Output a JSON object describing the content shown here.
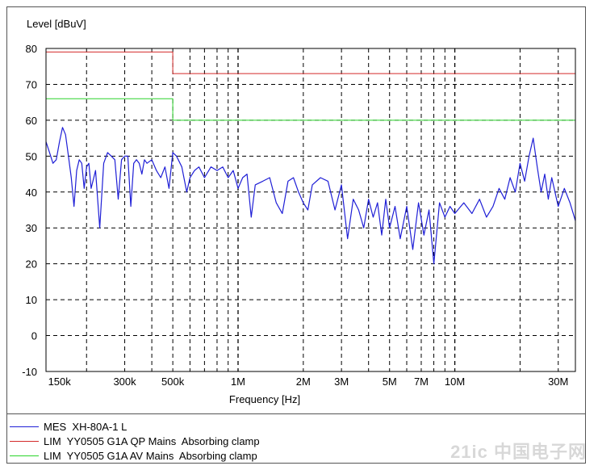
{
  "chart_data": {
    "type": "line",
    "ylabel": "Level [dBuV]",
    "xlabel": "Frequency [Hz]",
    "x_scale": "log",
    "xlim": [
      130000,
      36000000
    ],
    "ylim": [
      -10,
      80
    ],
    "yticks": [
      80,
      70,
      60,
      50,
      40,
      30,
      20,
      10,
      0,
      -10
    ],
    "xticks": [
      {
        "value": 150000,
        "label": "150k"
      },
      {
        "value": 300000,
        "label": "300k"
      },
      {
        "value": 500000,
        "label": "500k"
      },
      {
        "value": 1000000,
        "label": "1M"
      },
      {
        "value": 2000000,
        "label": "2M"
      },
      {
        "value": 3000000,
        "label": "3M"
      },
      {
        "value": 5000000,
        "label": "5M"
      },
      {
        "value": 7000000,
        "label": "7M"
      },
      {
        "value": 10000000,
        "label": "10M"
      },
      {
        "value": 30000000,
        "label": "30M"
      }
    ],
    "grid": true,
    "series": [
      {
        "name": "MES  XH-80A-1 L",
        "color": "#1f1fd6",
        "x": [
          130000,
          135000,
          140000,
          145000,
          150000,
          155000,
          160000,
          165000,
          170000,
          175000,
          180000,
          185000,
          190000,
          195000,
          200000,
          205000,
          210000,
          220000,
          230000,
          240000,
          250000,
          260000,
          270000,
          280000,
          290000,
          300000,
          310000,
          320000,
          330000,
          340000,
          350000,
          360000,
          370000,
          380000,
          400000,
          420000,
          440000,
          460000,
          480000,
          500000,
          520000,
          550000,
          580000,
          600000,
          630000,
          660000,
          700000,
          750000,
          800000,
          850000,
          900000,
          950000,
          1000000,
          1050000,
          1100000,
          1150000,
          1200000,
          1300000,
          1400000,
          1500000,
          1600000,
          1700000,
          1800000,
          1900000,
          2000000,
          2100000,
          2200000,
          2400000,
          2600000,
          2800000,
          3000000,
          3200000,
          3400000,
          3600000,
          3800000,
          4000000,
          4200000,
          4400000,
          4600000,
          4800000,
          5000000,
          5300000,
          5600000,
          6000000,
          6400000,
          6800000,
          7200000,
          7600000,
          8000000,
          8500000,
          9000000,
          9500000,
          10000000,
          11000000,
          12000000,
          13000000,
          14000000,
          15000000,
          16000000,
          17000000,
          18000000,
          19000000,
          20000000,
          21000000,
          22000000,
          23000000,
          24000000,
          25000000,
          26000000,
          27000000,
          28000000,
          30000000,
          32000000,
          34000000,
          36000000
        ],
        "y": [
          54,
          51,
          48,
          49,
          54,
          58,
          56,
          50,
          44,
          36,
          46,
          49,
          48,
          41,
          47,
          48,
          41,
          46,
          30,
          48,
          51,
          50,
          49,
          38,
          49,
          50,
          50,
          36,
          48,
          49,
          48,
          45,
          49,
          48,
          49,
          46,
          44,
          47,
          41,
          51,
          50,
          47,
          40,
          44,
          46,
          47,
          44,
          47,
          46,
          47,
          44,
          46,
          41,
          44,
          45,
          33,
          42,
          43,
          44,
          37,
          34,
          43,
          44,
          40,
          37,
          35,
          42,
          44,
          43,
          35,
          42,
          27,
          38,
          35,
          30,
          38,
          33,
          37,
          28,
          38,
          30,
          36,
          27,
          36,
          24,
          37,
          28,
          35,
          20,
          37,
          33,
          36,
          34,
          37,
          34,
          38,
          33,
          36,
          41,
          38,
          44,
          40,
          48,
          43,
          50,
          55,
          47,
          40,
          45,
          38,
          44,
          36,
          41,
          37,
          32
        ]
      },
      {
        "name": "LIM  YY0505 G1A QP Mains  Absorbing clamp",
        "color": "#d42a2a",
        "x": [
          130000,
          500000,
          500000,
          36000000
        ],
        "y": [
          79,
          79,
          73,
          73
        ]
      },
      {
        "name": "LIM  YY0505 G1A AV Mains  Absorbing clamp",
        "color": "#2ad42a",
        "x": [
          130000,
          500000,
          500000,
          36000000
        ],
        "y": [
          66,
          66,
          60,
          60
        ]
      }
    ]
  },
  "watermark": "21ic 中国电子网"
}
